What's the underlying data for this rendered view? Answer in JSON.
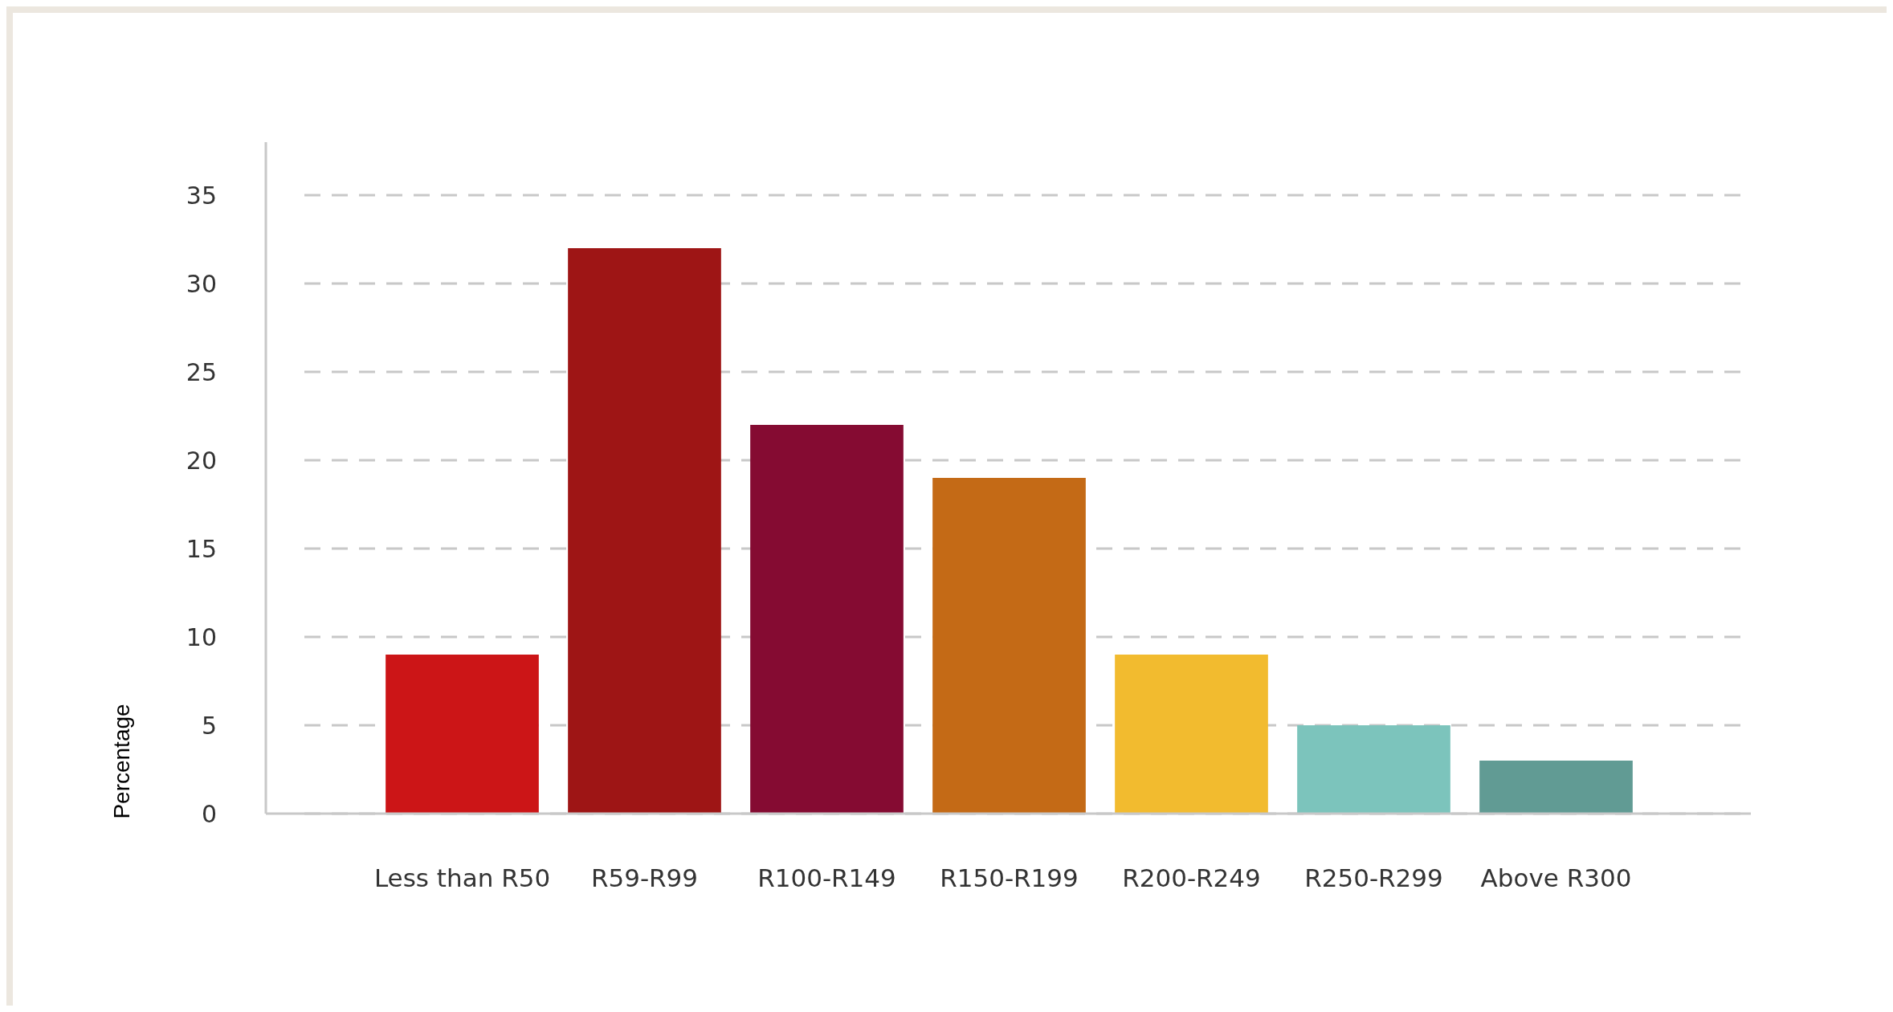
{
  "chart_data": {
    "type": "bar",
    "ylabel": "Percentage",
    "categories": [
      "Less than R50",
      "R59-R99",
      "R100-R149",
      "R150-R199",
      "R200-R249",
      "R250-R299",
      "Above R300"
    ],
    "values": [
      9,
      32,
      22,
      19,
      9,
      5,
      3
    ],
    "colors": [
      "#cc1517",
      "#9e1515",
      "#850b32",
      "#c46a16",
      "#f2bb2f",
      "#7cc4bc",
      "#619b94"
    ],
    "ylim": [
      0,
      38
    ],
    "yticks": [
      0,
      5,
      10,
      15,
      20,
      25,
      30,
      35
    ],
    "grid": "y"
  }
}
